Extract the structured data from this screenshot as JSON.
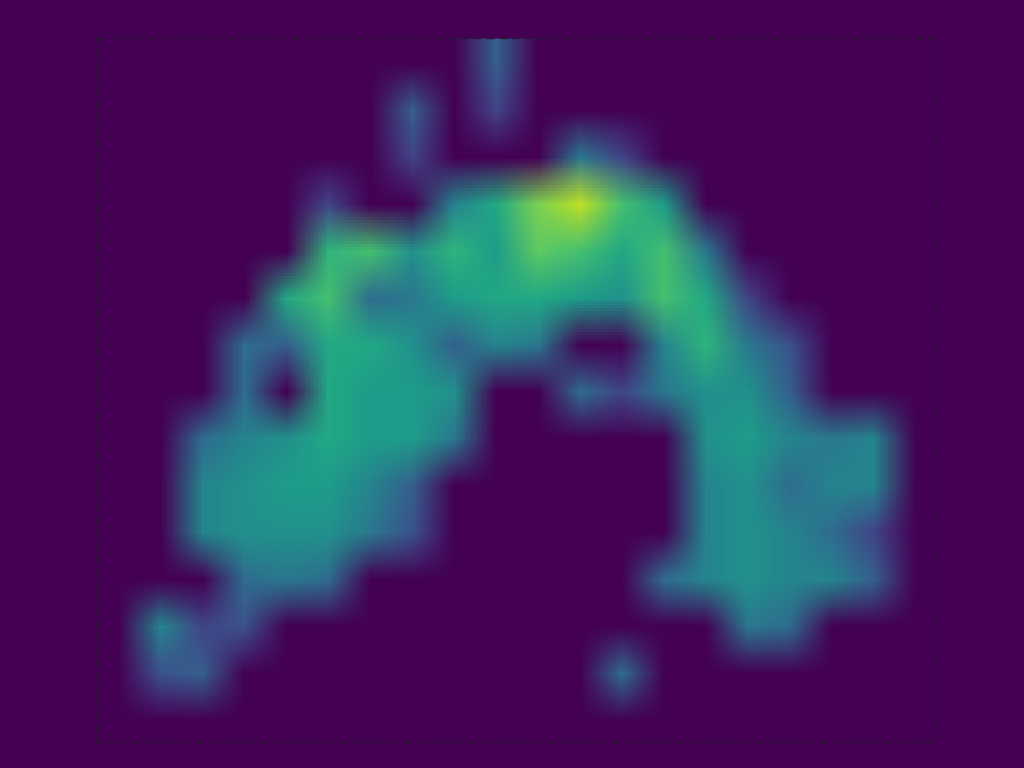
{
  "chart_data": {
    "type": "heatmap",
    "color": "viridis",
    "color_range": [
      0,
      100
    ],
    "tick_labels": false,
    "grid": false,
    "xlim": [
      0,
      20
    ],
    "ylim": [
      0,
      15
    ],
    "values": [
      [
        0,
        0,
        0,
        0,
        0,
        0,
        0,
        0,
        0,
        30,
        0,
        0,
        0,
        0,
        0,
        0,
        0,
        0,
        0,
        0
      ],
      [
        0,
        0,
        0,
        0,
        0,
        0,
        0,
        30,
        0,
        20,
        0,
        0,
        0,
        0,
        0,
        0,
        0,
        0,
        0,
        0
      ],
      [
        0,
        0,
        0,
        0,
        0,
        0,
        0,
        20,
        0,
        0,
        0,
        40,
        20,
        0,
        0,
        0,
        0,
        0,
        0,
        0
      ],
      [
        0,
        0,
        0,
        0,
        0,
        20,
        0,
        0,
        45,
        60,
        80,
        90,
        70,
        55,
        0,
        0,
        0,
        0,
        0,
        0
      ],
      [
        0,
        0,
        0,
        0,
        0,
        65,
        70,
        50,
        65,
        55,
        75,
        70,
        60,
        70,
        40,
        0,
        0,
        0,
        0,
        0
      ],
      [
        0,
        0,
        0,
        0,
        60,
        70,
        35,
        40,
        55,
        60,
        60,
        55,
        50,
        70,
        60,
        20,
        0,
        0,
        0,
        0
      ],
      [
        0,
        0,
        0,
        35,
        30,
        60,
        60,
        50,
        30,
        45,
        40,
        0,
        0,
        45,
        65,
        40,
        25,
        0,
        0,
        0
      ],
      [
        0,
        0,
        0,
        35,
        0,
        60,
        55,
        55,
        50,
        0,
        0,
        35,
        20,
        40,
        50,
        50,
        30,
        0,
        0,
        0
      ],
      [
        0,
        0,
        35,
        45,
        50,
        60,
        55,
        55,
        40,
        0,
        0,
        0,
        0,
        0,
        50,
        55,
        45,
        40,
        45,
        0
      ],
      [
        0,
        0,
        45,
        50,
        55,
        55,
        45,
        30,
        0,
        0,
        0,
        0,
        0,
        0,
        45,
        50,
        35,
        45,
        45,
        0
      ],
      [
        0,
        0,
        45,
        50,
        50,
        50,
        40,
        25,
        0,
        0,
        0,
        0,
        0,
        0,
        45,
        50,
        45,
        35,
        20,
        0
      ],
      [
        0,
        0,
        0,
        35,
        40,
        35,
        0,
        0,
        0,
        0,
        0,
        0,
        0,
        35,
        45,
        50,
        45,
        45,
        30,
        0
      ],
      [
        0,
        45,
        20,
        25,
        0,
        0,
        0,
        0,
        0,
        0,
        0,
        0,
        0,
        0,
        0,
        40,
        35,
        0,
        0,
        0
      ],
      [
        0,
        25,
        30,
        0,
        0,
        0,
        0,
        0,
        0,
        0,
        0,
        0,
        35,
        0,
        0,
        0,
        0,
        0,
        0,
        0
      ],
      [
        0,
        0,
        0,
        0,
        0,
        0,
        0,
        0,
        0,
        0,
        0,
        0,
        0,
        0,
        0,
        0,
        0,
        0,
        0,
        0
      ]
    ]
  }
}
